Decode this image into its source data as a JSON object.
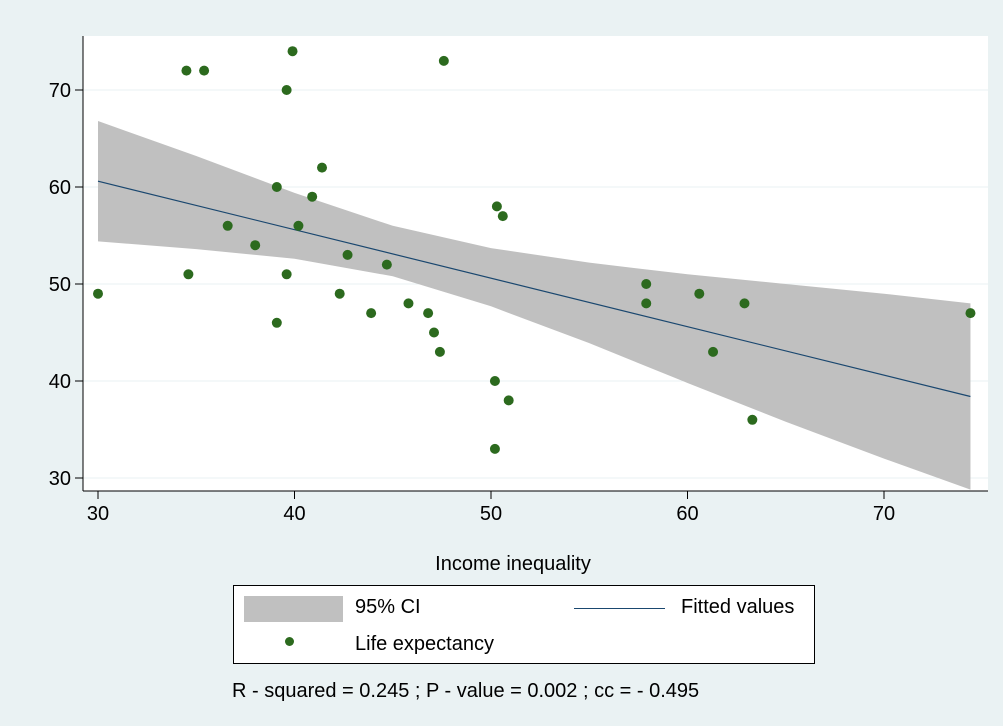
{
  "chart_data": {
    "type": "scatter",
    "xlabel": "Income inequality",
    "ylabel": "",
    "xlim": [
      29.5,
      75
    ],
    "ylim": [
      27.5,
      76
    ],
    "x_ticks": [
      30,
      40,
      50,
      60,
      70
    ],
    "y_ticks": [
      30,
      40,
      50,
      60,
      70
    ],
    "grid": true,
    "legend_position": "bottom",
    "series": [
      {
        "name": "Life expectancy",
        "kind": "scatter",
        "color": "#2c6a1e",
        "points": [
          {
            "x": 30.0,
            "y": 49
          },
          {
            "x": 34.5,
            "y": 72
          },
          {
            "x": 34.6,
            "y": 51
          },
          {
            "x": 35.4,
            "y": 72
          },
          {
            "x": 36.6,
            "y": 56
          },
          {
            "x": 38.0,
            "y": 54
          },
          {
            "x": 39.1,
            "y": 60
          },
          {
            "x": 39.1,
            "y": 46
          },
          {
            "x": 39.6,
            "y": 70
          },
          {
            "x": 39.6,
            "y": 51
          },
          {
            "x": 39.9,
            "y": 74
          },
          {
            "x": 40.2,
            "y": 56
          },
          {
            "x": 40.9,
            "y": 59
          },
          {
            "x": 41.4,
            "y": 62
          },
          {
            "x": 42.3,
            "y": 49
          },
          {
            "x": 42.7,
            "y": 53
          },
          {
            "x": 43.9,
            "y": 47
          },
          {
            "x": 44.7,
            "y": 52
          },
          {
            "x": 45.8,
            "y": 48
          },
          {
            "x": 46.8,
            "y": 47
          },
          {
            "x": 47.1,
            "y": 45
          },
          {
            "x": 47.4,
            "y": 43
          },
          {
            "x": 47.6,
            "y": 73
          },
          {
            "x": 50.2,
            "y": 40
          },
          {
            "x": 50.2,
            "y": 33
          },
          {
            "x": 50.3,
            "y": 58
          },
          {
            "x": 50.6,
            "y": 57
          },
          {
            "x": 50.9,
            "y": 38
          },
          {
            "x": 57.9,
            "y": 50
          },
          {
            "x": 57.9,
            "y": 48
          },
          {
            "x": 60.6,
            "y": 49
          },
          {
            "x": 61.3,
            "y": 43
          },
          {
            "x": 62.9,
            "y": 48
          },
          {
            "x": 63.3,
            "y": 36
          },
          {
            "x": 74.4,
            "y": 47
          }
        ]
      },
      {
        "name": "Fitted values",
        "kind": "line",
        "color": "#1a476f",
        "points": [
          {
            "x": 30.0,
            "y": 60.6
          },
          {
            "x": 74.4,
            "y": 38.4
          }
        ]
      },
      {
        "name": "95% CI",
        "kind": "band",
        "color": "#c0c0c0",
        "x": [
          30,
          35,
          40,
          45,
          50,
          55,
          60,
          65,
          70,
          74.4
        ],
        "upper": [
          66.8,
          63.2,
          59.4,
          56.0,
          53.7,
          52.2,
          51.0,
          50.0,
          49.0,
          48.0
        ],
        "lower": [
          54.4,
          53.6,
          52.6,
          50.8,
          47.7,
          43.9,
          39.8,
          35.8,
          32.0,
          28.8
        ]
      }
    ]
  },
  "legend": {
    "ci_label": "95% CI",
    "fitted_label": "Fitted values",
    "life_label": "Life expectancy"
  },
  "note": "R - squared = 0.245 ; P - value = 0.002 ; cc = - 0.495"
}
